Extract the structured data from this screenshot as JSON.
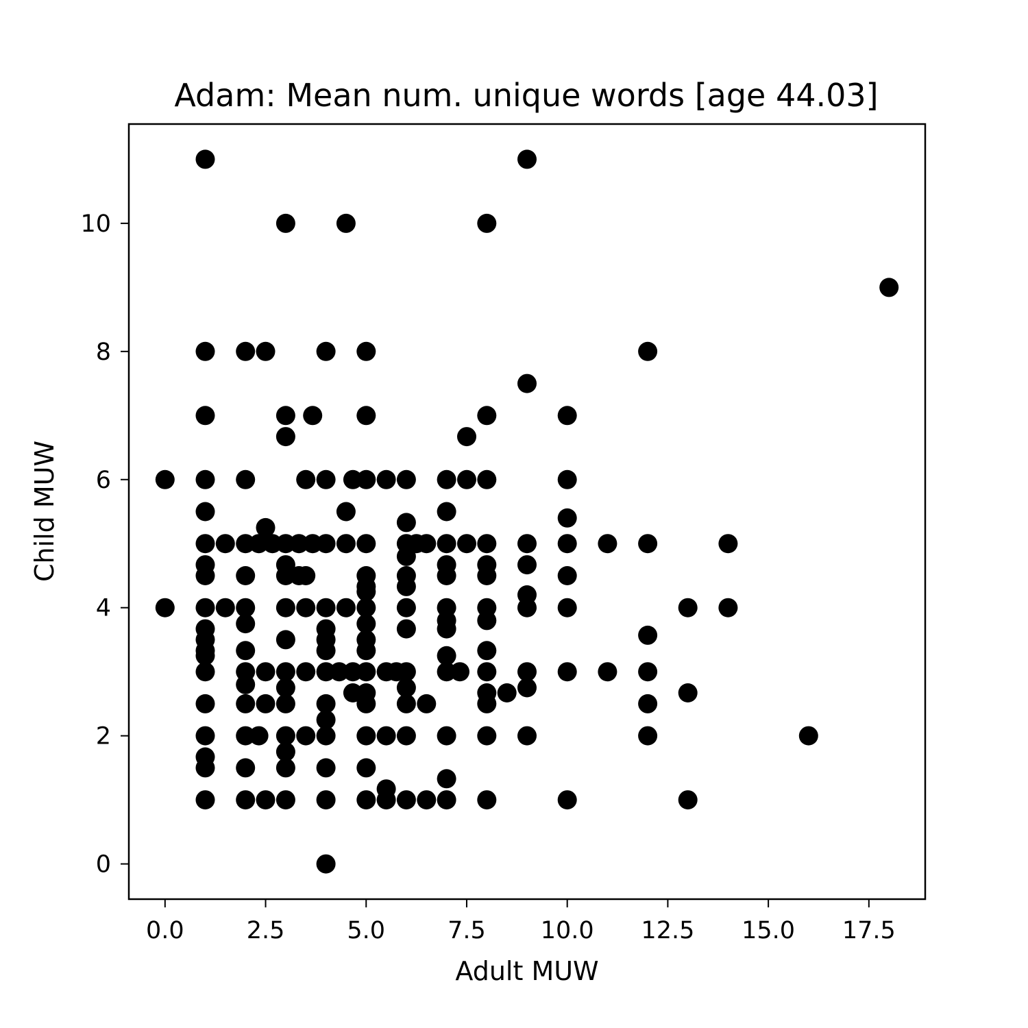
{
  "chart_data": {
    "type": "scatter",
    "title": "Adam: Mean num. unique words [age 44.03]",
    "xlabel": "Adult MUW",
    "ylabel": "Child MUW",
    "xlim": [
      -0.9,
      18.9
    ],
    "ylim": [
      -0.55,
      11.55
    ],
    "xticks": [
      0,
      2.5,
      5,
      7.5,
      10,
      12.5,
      15,
      17.5
    ],
    "xtick_labels": [
      "0.0",
      "2.5",
      "5.0",
      "7.5",
      "10.0",
      "12.5",
      "15.0",
      "17.5"
    ],
    "yticks": [
      0,
      2,
      4,
      6,
      8,
      10
    ],
    "ytick_labels": [
      "0",
      "2",
      "4",
      "6",
      "8",
      "10"
    ],
    "grid": false,
    "marker_color": "#000000",
    "series": [
      {
        "points": [
          [
            1,
            11
          ],
          [
            9,
            11
          ],
          [
            3,
            10
          ],
          [
            4.5,
            10
          ],
          [
            8,
            10
          ],
          [
            18,
            9
          ],
          [
            1,
            8
          ],
          [
            2,
            8
          ],
          [
            2.5,
            8
          ],
          [
            4,
            8
          ],
          [
            5,
            8
          ],
          [
            12,
            8
          ],
          [
            9,
            7.5
          ],
          [
            1,
            7
          ],
          [
            3,
            7
          ],
          [
            3.67,
            7
          ],
          [
            5,
            7
          ],
          [
            8,
            7
          ],
          [
            10,
            7
          ],
          [
            3,
            6.67
          ],
          [
            7.5,
            6.67
          ],
          [
            0,
            6
          ],
          [
            1,
            6
          ],
          [
            2,
            6
          ],
          [
            3.5,
            6
          ],
          [
            4,
            6
          ],
          [
            4.67,
            6
          ],
          [
            5,
            6
          ],
          [
            5.5,
            6
          ],
          [
            6,
            6
          ],
          [
            7,
            6
          ],
          [
            7.5,
            6
          ],
          [
            8,
            6
          ],
          [
            10,
            6
          ],
          [
            1,
            5.5
          ],
          [
            4.5,
            5.5
          ],
          [
            7,
            5.5
          ],
          [
            10,
            5.4
          ],
          [
            6,
            5.33
          ],
          [
            2.5,
            5.25
          ],
          [
            1,
            5
          ],
          [
            1.5,
            5
          ],
          [
            2,
            5
          ],
          [
            2.33,
            5
          ],
          [
            2.67,
            5
          ],
          [
            3,
            5
          ],
          [
            3.33,
            5
          ],
          [
            3.67,
            5
          ],
          [
            4,
            5
          ],
          [
            4.5,
            5
          ],
          [
            5,
            5
          ],
          [
            6,
            5
          ],
          [
            6.25,
            5
          ],
          [
            6.5,
            5
          ],
          [
            7,
            5
          ],
          [
            7.5,
            5
          ],
          [
            8,
            5
          ],
          [
            9,
            5
          ],
          [
            10,
            5
          ],
          [
            11,
            5
          ],
          [
            12,
            5
          ],
          [
            14,
            5
          ],
          [
            6,
            4.8
          ],
          [
            1,
            4.67
          ],
          [
            3,
            4.67
          ],
          [
            7,
            4.67
          ],
          [
            8,
            4.67
          ],
          [
            9,
            4.67
          ],
          [
            1,
            4.5
          ],
          [
            2,
            4.5
          ],
          [
            3,
            4.5
          ],
          [
            3.33,
            4.5
          ],
          [
            3.5,
            4.5
          ],
          [
            5,
            4.5
          ],
          [
            6,
            4.5
          ],
          [
            7,
            4.5
          ],
          [
            8,
            4.5
          ],
          [
            10,
            4.5
          ],
          [
            5,
            4.33
          ],
          [
            6,
            4.33
          ],
          [
            5,
            4.25
          ],
          [
            9,
            4.2
          ],
          [
            0,
            4
          ],
          [
            1,
            4
          ],
          [
            1.5,
            4
          ],
          [
            2,
            4
          ],
          [
            3,
            4
          ],
          [
            3.5,
            4
          ],
          [
            4,
            4
          ],
          [
            4.5,
            4
          ],
          [
            5,
            4
          ],
          [
            6,
            4
          ],
          [
            7,
            4
          ],
          [
            8,
            4
          ],
          [
            9,
            4
          ],
          [
            10,
            4
          ],
          [
            13,
            4
          ],
          [
            14,
            4
          ],
          [
            2,
            3.75
          ],
          [
            5,
            3.75
          ],
          [
            7,
            3.8
          ],
          [
            8,
            3.8
          ],
          [
            1,
            3.67
          ],
          [
            4,
            3.67
          ],
          [
            6,
            3.67
          ],
          [
            7,
            3.67
          ],
          [
            12,
            3.57
          ],
          [
            1,
            3.5
          ],
          [
            3,
            3.5
          ],
          [
            4,
            3.5
          ],
          [
            5,
            3.5
          ],
          [
            1,
            3.33
          ],
          [
            2,
            3.33
          ],
          [
            4,
            3.33
          ],
          [
            5,
            3.33
          ],
          [
            8,
            3.33
          ],
          [
            1,
            3.25
          ],
          [
            7,
            3.25
          ],
          [
            1,
            3
          ],
          [
            2,
            3
          ],
          [
            2.5,
            3
          ],
          [
            3,
            3
          ],
          [
            3.5,
            3
          ],
          [
            4,
            3
          ],
          [
            4.33,
            3
          ],
          [
            4.67,
            3
          ],
          [
            5,
            3
          ],
          [
            5.5,
            3
          ],
          [
            5.75,
            3
          ],
          [
            6,
            3
          ],
          [
            7,
            3
          ],
          [
            7.33,
            3
          ],
          [
            8,
            3
          ],
          [
            9,
            3
          ],
          [
            10,
            3
          ],
          [
            11,
            3
          ],
          [
            12,
            3
          ],
          [
            2,
            2.8
          ],
          [
            3,
            2.75
          ],
          [
            6,
            2.75
          ],
          [
            9,
            2.75
          ],
          [
            4.67,
            2.67
          ],
          [
            5,
            2.67
          ],
          [
            8,
            2.67
          ],
          [
            8.5,
            2.67
          ],
          [
            13,
            2.67
          ],
          [
            1,
            2.5
          ],
          [
            2,
            2.5
          ],
          [
            2.5,
            2.5
          ],
          [
            3,
            2.5
          ],
          [
            4,
            2.5
          ],
          [
            5,
            2.5
          ],
          [
            6,
            2.5
          ],
          [
            6.5,
            2.5
          ],
          [
            8,
            2.5
          ],
          [
            12,
            2.5
          ],
          [
            4,
            2.25
          ],
          [
            1,
            2
          ],
          [
            2,
            2
          ],
          [
            2.33,
            2
          ],
          [
            3,
            2
          ],
          [
            3.5,
            2
          ],
          [
            4,
            2
          ],
          [
            5,
            2
          ],
          [
            5.5,
            2
          ],
          [
            6,
            2
          ],
          [
            7,
            2
          ],
          [
            8,
            2
          ],
          [
            9,
            2
          ],
          [
            12,
            2
          ],
          [
            16,
            2
          ],
          [
            3,
            1.75
          ],
          [
            1,
            1.67
          ],
          [
            1,
            1.5
          ],
          [
            2,
            1.5
          ],
          [
            3,
            1.5
          ],
          [
            4,
            1.5
          ],
          [
            5,
            1.5
          ],
          [
            7,
            1.33
          ],
          [
            5.5,
            1.17
          ],
          [
            1,
            1
          ],
          [
            2,
            1
          ],
          [
            2.5,
            1
          ],
          [
            3,
            1
          ],
          [
            4,
            1
          ],
          [
            5,
            1
          ],
          [
            5.5,
            1
          ],
          [
            6,
            1
          ],
          [
            6.5,
            1
          ],
          [
            7,
            1
          ],
          [
            8,
            1
          ],
          [
            10,
            1
          ],
          [
            13,
            1
          ],
          [
            4,
            0
          ]
        ]
      }
    ]
  }
}
